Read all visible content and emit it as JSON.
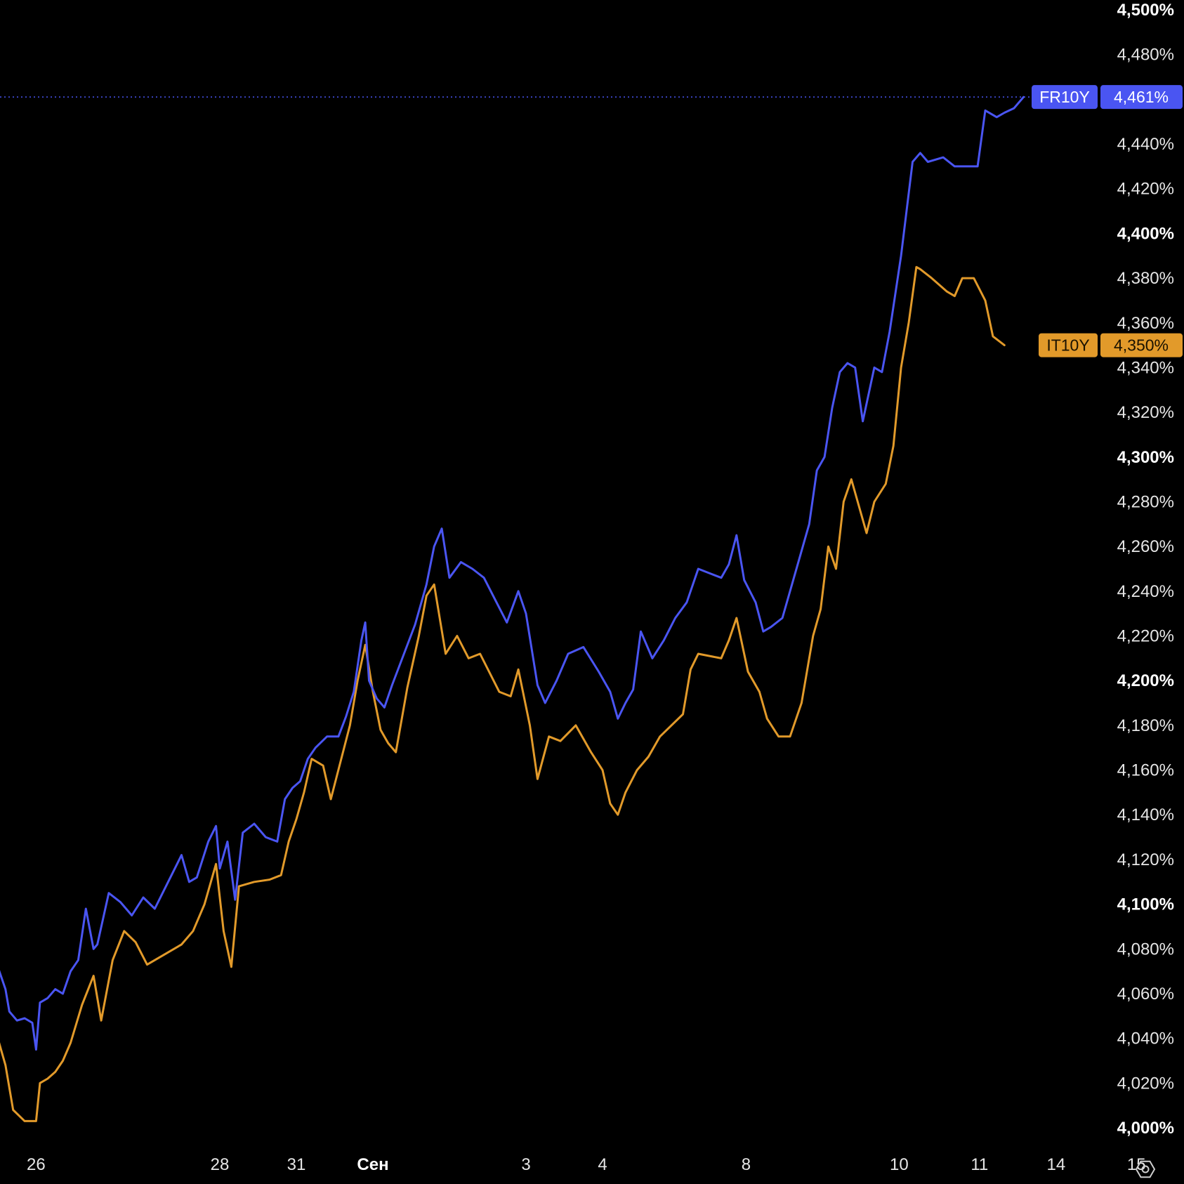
{
  "chart_data": {
    "type": "line",
    "y_unit": "%",
    "ylim": [
      4.0,
      4.5
    ],
    "y_ticks": [
      "4,500%",
      "4,480%",
      "4,460%",
      "4,440%",
      "4,420%",
      "4,400%",
      "4,380%",
      "4,360%",
      "4,340%",
      "4,320%",
      "4,300%",
      "4,280%",
      "4,260%",
      "4,240%",
      "4,220%",
      "4,200%",
      "4,180%",
      "4,160%",
      "4,140%",
      "4,120%",
      "4,100%",
      "4,080%",
      "4,060%",
      "4,040%",
      "4,020%",
      "4,000%"
    ],
    "y_tick_values": [
      4.5,
      4.48,
      4.46,
      4.44,
      4.42,
      4.4,
      4.38,
      4.36,
      4.34,
      4.32,
      4.3,
      4.28,
      4.26,
      4.24,
      4.22,
      4.2,
      4.18,
      4.16,
      4.14,
      4.12,
      4.1,
      4.08,
      4.06,
      4.04,
      4.02,
      4.0
    ],
    "y_tick_bold": [
      "4,500%",
      "4,400%",
      "4,300%",
      "4,200%",
      "4,100%",
      "4,000%"
    ],
    "x_ticks": [
      {
        "label": "26",
        "x": 0.04
      },
      {
        "label": "28",
        "x": 1.0
      },
      {
        "label": "31",
        "x": 1.4
      },
      {
        "label": "Сен",
        "x": 1.8,
        "bold": true
      },
      {
        "label": "3",
        "x": 2.6
      },
      {
        "label": "4",
        "x": 3.0
      },
      {
        "label": "8",
        "x": 3.75
      },
      {
        "label": "10",
        "x": 4.55
      },
      {
        "label": "11",
        "x": 4.97
      },
      {
        "label": "14",
        "x": 5.37
      },
      {
        "label": "15",
        "x": 5.79
      }
    ],
    "xlim": [
      -0.2,
      5.85
    ],
    "grid": false,
    "series": [
      {
        "name": "FR10Y",
        "color": "#4a55f2",
        "last_value_label": "4,461%",
        "last_value": 4.461,
        "points": [
          [
            -0.2,
            4.077
          ],
          [
            -0.16,
            4.072
          ],
          [
            -0.12,
            4.062
          ],
          [
            -0.1,
            4.052
          ],
          [
            -0.06,
            4.048
          ],
          [
            -0.02,
            4.049
          ],
          [
            0.02,
            4.047
          ],
          [
            0.04,
            4.035
          ],
          [
            0.06,
            4.056
          ],
          [
            0.1,
            4.058
          ],
          [
            0.14,
            4.062
          ],
          [
            0.18,
            4.06
          ],
          [
            0.22,
            4.07
          ],
          [
            0.26,
            4.075
          ],
          [
            0.3,
            4.098
          ],
          [
            0.34,
            4.08
          ],
          [
            0.36,
            4.082
          ],
          [
            0.42,
            4.105
          ],
          [
            0.48,
            4.101
          ],
          [
            0.54,
            4.095
          ],
          [
            0.6,
            4.103
          ],
          [
            0.66,
            4.098
          ],
          [
            0.8,
            4.122
          ],
          [
            0.84,
            4.11
          ],
          [
            0.88,
            4.112
          ],
          [
            0.94,
            4.128
          ],
          [
            0.98,
            4.135
          ],
          [
            1.0,
            4.116
          ],
          [
            1.04,
            4.128
          ],
          [
            1.08,
            4.102
          ],
          [
            1.12,
            4.132
          ],
          [
            1.18,
            4.136
          ],
          [
            1.24,
            4.13
          ],
          [
            1.3,
            4.128
          ],
          [
            1.34,
            4.147
          ],
          [
            1.38,
            4.152
          ],
          [
            1.42,
            4.155
          ],
          [
            1.46,
            4.165
          ],
          [
            1.5,
            4.17
          ],
          [
            1.56,
            4.175
          ],
          [
            1.62,
            4.175
          ],
          [
            1.66,
            4.184
          ],
          [
            1.7,
            4.195
          ],
          [
            1.74,
            4.218
          ],
          [
            1.76,
            4.226
          ],
          [
            1.78,
            4.2
          ],
          [
            1.82,
            4.192
          ],
          [
            1.86,
            4.188
          ],
          [
            1.9,
            4.198
          ],
          [
            2.02,
            4.225
          ],
          [
            2.08,
            4.243
          ],
          [
            2.12,
            4.26
          ],
          [
            2.16,
            4.268
          ],
          [
            2.2,
            4.246
          ],
          [
            2.26,
            4.253
          ],
          [
            2.32,
            4.25
          ],
          [
            2.38,
            4.246
          ],
          [
            2.44,
            4.236
          ],
          [
            2.5,
            4.226
          ],
          [
            2.56,
            4.24
          ],
          [
            2.6,
            4.23
          ],
          [
            2.66,
            4.198
          ],
          [
            2.7,
            4.19
          ],
          [
            2.76,
            4.2
          ],
          [
            2.82,
            4.212
          ],
          [
            2.9,
            4.215
          ],
          [
            2.98,
            4.204
          ],
          [
            3.04,
            4.195
          ],
          [
            3.08,
            4.183
          ],
          [
            3.12,
            4.19
          ],
          [
            3.16,
            4.196
          ],
          [
            3.2,
            4.222
          ],
          [
            3.26,
            4.21
          ],
          [
            3.32,
            4.218
          ],
          [
            3.38,
            4.228
          ],
          [
            3.44,
            4.235
          ],
          [
            3.5,
            4.25
          ],
          [
            3.56,
            4.248
          ],
          [
            3.62,
            4.246
          ],
          [
            3.66,
            4.252
          ],
          [
            3.7,
            4.265
          ],
          [
            3.74,
            4.245
          ],
          [
            3.8,
            4.235
          ],
          [
            3.84,
            4.222
          ],
          [
            3.88,
            4.224
          ],
          [
            3.94,
            4.228
          ],
          [
            4.0,
            4.246
          ],
          [
            4.08,
            4.27
          ],
          [
            4.12,
            4.294
          ],
          [
            4.16,
            4.3
          ],
          [
            4.2,
            4.322
          ],
          [
            4.24,
            4.338
          ],
          [
            4.28,
            4.342
          ],
          [
            4.32,
            4.34
          ],
          [
            4.36,
            4.316
          ],
          [
            4.42,
            4.34
          ],
          [
            4.46,
            4.338
          ],
          [
            4.5,
            4.356
          ],
          [
            4.56,
            4.39
          ],
          [
            4.62,
            4.432
          ],
          [
            4.66,
            4.436
          ],
          [
            4.7,
            4.432
          ],
          [
            4.78,
            4.434
          ],
          [
            4.84,
            4.43
          ],
          [
            4.9,
            4.43
          ],
          [
            4.96,
            4.43
          ],
          [
            5.0,
            4.455
          ],
          [
            5.06,
            4.452
          ],
          [
            5.1,
            4.454
          ],
          [
            5.15,
            4.456
          ],
          [
            5.2,
            4.461
          ]
        ]
      },
      {
        "name": "IT10Y",
        "color": "#e29a2a",
        "last_value_label": "4,350%",
        "last_value": 4.35,
        "points": [
          [
            -0.2,
            4.047
          ],
          [
            -0.16,
            4.04
          ],
          [
            -0.12,
            4.028
          ],
          [
            -0.08,
            4.008
          ],
          [
            -0.02,
            4.003
          ],
          [
            0.04,
            4.003
          ],
          [
            0.06,
            4.02
          ],
          [
            0.1,
            4.022
          ],
          [
            0.14,
            4.025
          ],
          [
            0.18,
            4.03
          ],
          [
            0.22,
            4.038
          ],
          [
            0.28,
            4.055
          ],
          [
            0.34,
            4.068
          ],
          [
            0.38,
            4.048
          ],
          [
            0.44,
            4.075
          ],
          [
            0.5,
            4.088
          ],
          [
            0.56,
            4.083
          ],
          [
            0.62,
            4.073
          ],
          [
            0.8,
            4.082
          ],
          [
            0.86,
            4.088
          ],
          [
            0.92,
            4.1
          ],
          [
            0.98,
            4.118
          ],
          [
            1.02,
            4.088
          ],
          [
            1.06,
            4.072
          ],
          [
            1.1,
            4.108
          ],
          [
            1.18,
            4.11
          ],
          [
            1.26,
            4.111
          ],
          [
            1.32,
            4.113
          ],
          [
            1.36,
            4.128
          ],
          [
            1.4,
            4.138
          ],
          [
            1.44,
            4.15
          ],
          [
            1.48,
            4.165
          ],
          [
            1.54,
            4.162
          ],
          [
            1.58,
            4.147
          ],
          [
            1.68,
            4.18
          ],
          [
            1.72,
            4.2
          ],
          [
            1.76,
            4.216
          ],
          [
            1.8,
            4.195
          ],
          [
            1.84,
            4.178
          ],
          [
            1.88,
            4.172
          ],
          [
            1.92,
            4.168
          ],
          [
            1.98,
            4.197
          ],
          [
            2.04,
            4.22
          ],
          [
            2.08,
            4.238
          ],
          [
            2.12,
            4.243
          ],
          [
            2.18,
            4.212
          ],
          [
            2.24,
            4.22
          ],
          [
            2.3,
            4.21
          ],
          [
            2.36,
            4.212
          ],
          [
            2.46,
            4.195
          ],
          [
            2.52,
            4.193
          ],
          [
            2.56,
            4.205
          ],
          [
            2.62,
            4.18
          ],
          [
            2.66,
            4.156
          ],
          [
            2.72,
            4.175
          ],
          [
            2.78,
            4.173
          ],
          [
            2.86,
            4.18
          ],
          [
            2.94,
            4.168
          ],
          [
            3.0,
            4.16
          ],
          [
            3.04,
            4.145
          ],
          [
            3.08,
            4.14
          ],
          [
            3.12,
            4.15
          ],
          [
            3.18,
            4.16
          ],
          [
            3.24,
            4.166
          ],
          [
            3.3,
            4.175
          ],
          [
            3.36,
            4.18
          ],
          [
            3.42,
            4.185
          ],
          [
            3.46,
            4.205
          ],
          [
            3.5,
            4.212
          ],
          [
            3.62,
            4.21
          ],
          [
            3.66,
            4.218
          ],
          [
            3.7,
            4.228
          ],
          [
            3.76,
            4.204
          ],
          [
            3.82,
            4.195
          ],
          [
            3.86,
            4.183
          ],
          [
            3.92,
            4.175
          ],
          [
            3.98,
            4.175
          ],
          [
            4.04,
            4.19
          ],
          [
            4.1,
            4.22
          ],
          [
            4.14,
            4.232
          ],
          [
            4.18,
            4.26
          ],
          [
            4.22,
            4.25
          ],
          [
            4.26,
            4.28
          ],
          [
            4.3,
            4.29
          ],
          [
            4.38,
            4.266
          ],
          [
            4.42,
            4.28
          ],
          [
            4.48,
            4.288
          ],
          [
            4.52,
            4.305
          ],
          [
            4.56,
            4.34
          ],
          [
            4.6,
            4.36
          ],
          [
            4.64,
            4.385
          ],
          [
            4.66,
            4.384
          ],
          [
            4.72,
            4.38
          ],
          [
            4.8,
            4.374
          ],
          [
            4.84,
            4.372
          ],
          [
            4.88,
            4.38
          ],
          [
            4.94,
            4.38
          ],
          [
            5.0,
            4.37
          ],
          [
            5.04,
            4.354
          ],
          [
            5.1,
            4.35
          ]
        ]
      }
    ]
  },
  "settings_icon": "settings-hexagon-icon"
}
